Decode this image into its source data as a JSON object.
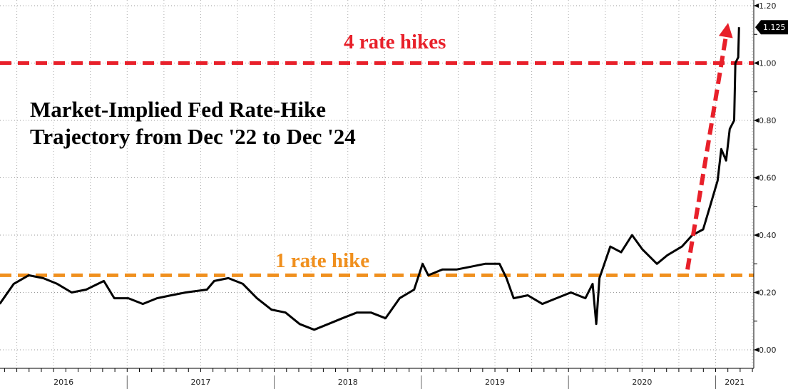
{
  "chart_data": {
    "type": "line",
    "title": "Market-Implied Fed Rate-Hike\nTrajectory from Dec '22 to Dec '24",
    "title_lines": [
      "Market-Implied Fed Rate-Hike",
      "Trajectory from Dec '22 to Dec '24"
    ],
    "xlabel": "",
    "ylabel": "",
    "y_axis_side": "right",
    "ylim": [
      0,
      1.2
    ],
    "y_ticks": [
      "0.00",
      "0.20",
      "0.40",
      "0.60",
      "0.80",
      "1.00",
      "1.20"
    ],
    "x_ticks": [
      "2016",
      "2017",
      "2018",
      "2019",
      "2020",
      "2021"
    ],
    "grid": true,
    "last_value_label": "1.125",
    "series": [
      {
        "color": "#000000",
        "points": [
          [
            "2016-02-19",
            0.16
          ],
          [
            "2016-03-25",
            0.23
          ],
          [
            "2016-05-01",
            0.26
          ],
          [
            "2016-06-06",
            0.25
          ],
          [
            "2016-07-11",
            0.23
          ],
          [
            "2016-08-16",
            0.2
          ],
          [
            "2016-09-21",
            0.21
          ],
          [
            "2016-11-04",
            0.24
          ],
          [
            "2016-11-30",
            0.18
          ],
          [
            "2017-01-04",
            0.18
          ],
          [
            "2017-02-09",
            0.16
          ],
          [
            "2017-03-16",
            0.18
          ],
          [
            "2017-04-20",
            0.19
          ],
          [
            "2017-05-26",
            0.2
          ],
          [
            "2017-07-18",
            0.21
          ],
          [
            "2017-08-05",
            0.24
          ],
          [
            "2017-09-09",
            0.25
          ],
          [
            "2017-10-15",
            0.23
          ],
          [
            "2017-11-19",
            0.18
          ],
          [
            "2017-12-25",
            0.14
          ],
          [
            "2018-01-29",
            0.13
          ],
          [
            "2018-03-05",
            0.09
          ],
          [
            "2018-04-10",
            0.07
          ],
          [
            "2018-05-15",
            0.09
          ],
          [
            "2018-06-19",
            0.11
          ],
          [
            "2018-07-25",
            0.13
          ],
          [
            "2018-08-29",
            0.13
          ],
          [
            "2018-10-04",
            0.11
          ],
          [
            "2018-11-08",
            0.18
          ],
          [
            "2018-12-14",
            0.21
          ],
          [
            "2019-01-04",
            0.3
          ],
          [
            "2019-01-18",
            0.26
          ],
          [
            "2019-02-22",
            0.28
          ],
          [
            "2019-03-29",
            0.28
          ],
          [
            "2019-05-04",
            0.29
          ],
          [
            "2019-06-08",
            0.3
          ],
          [
            "2019-07-14",
            0.3
          ],
          [
            "2019-07-31",
            0.25
          ],
          [
            "2019-08-18",
            0.18
          ],
          [
            "2019-09-22",
            0.19
          ],
          [
            "2019-10-28",
            0.16
          ],
          [
            "2019-12-02",
            0.18
          ],
          [
            "2020-01-07",
            0.2
          ],
          [
            "2020-02-12",
            0.18
          ],
          [
            "2020-03-01",
            0.23
          ],
          [
            "2020-03-10",
            0.09
          ],
          [
            "2020-03-18",
            0.25
          ],
          [
            "2020-04-14",
            0.36
          ],
          [
            "2020-05-11",
            0.34
          ],
          [
            "2020-06-07",
            0.4
          ],
          [
            "2020-07-03",
            0.35
          ],
          [
            "2020-08-08",
            0.3
          ],
          [
            "2020-09-03",
            0.33
          ],
          [
            "2020-10-09",
            0.36
          ],
          [
            "2020-11-04",
            0.4
          ],
          [
            "2020-12-01",
            0.42
          ],
          [
            "2020-12-18",
            0.5
          ],
          [
            "2021-01-06",
            0.59
          ],
          [
            "2021-01-15",
            0.7
          ],
          [
            "2021-01-27",
            0.66
          ],
          [
            "2021-02-05",
            0.77
          ],
          [
            "2021-02-16",
            0.8
          ],
          [
            "2021-02-19",
            1.0
          ],
          [
            "2021-02-26",
            1.02
          ],
          [
            "2021-02-28",
            1.125
          ]
        ]
      }
    ],
    "reference_lines": [
      {
        "label": "4 rate hikes",
        "value": 1.0,
        "color": "#e8202a",
        "style": "dashed"
      },
      {
        "label": "1 rate hike",
        "value": 0.26,
        "color": "#f0901e",
        "style": "dashed"
      }
    ],
    "arrow": {
      "color": "#e8202a",
      "from": [
        "2020-10-23",
        0.28
      ],
      "to": [
        "2021-02-01",
        1.14
      ]
    }
  }
}
